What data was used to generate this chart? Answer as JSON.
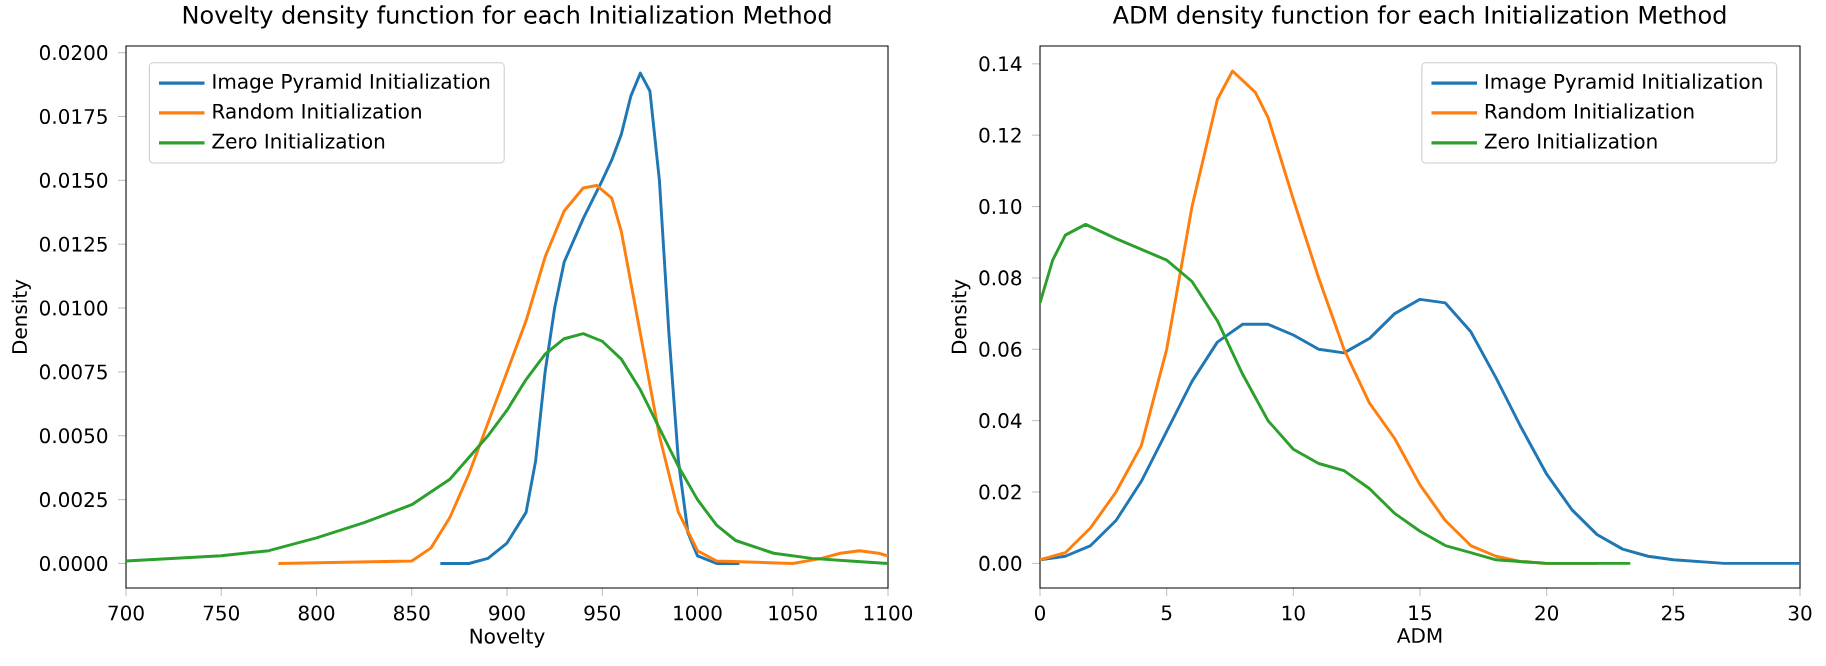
{
  "chart_data": [
    {
      "type": "line",
      "title": "Novelty density function for each Initialization Method",
      "xlabel": "Novelty",
      "ylabel": "Density",
      "xlim": [
        700,
        1100
      ],
      "xticks": [
        700,
        750,
        800,
        850,
        900,
        950,
        1000,
        1050,
        1100
      ],
      "ylim": [
        -0.00096,
        0.02026
      ],
      "yticks": [
        {
          "value": 0,
          "label": "0.0000"
        },
        {
          "value": 0.0025,
          "label": "0.0025"
        },
        {
          "value": 0.005,
          "label": "0.0050"
        },
        {
          "value": 0.0075,
          "label": "0.0075"
        },
        {
          "value": 0.01,
          "label": "0.0100"
        },
        {
          "value": 0.0125,
          "label": "0.0125"
        },
        {
          "value": 0.015,
          "label": "0.0150"
        },
        {
          "value": 0.0175,
          "label": "0.0175"
        },
        {
          "value": 0.02,
          "label": "0.0200"
        }
      ],
      "legend": "top left",
      "series": [
        {
          "name": "Image Pyramid Initialization",
          "color": "#1f77b4",
          "x": [
            865,
            880,
            890,
            900,
            910,
            915,
            920,
            925,
            930,
            940,
            950,
            955,
            960,
            965,
            970,
            975,
            980,
            985,
            990,
            995,
            1000,
            1010,
            1022
          ],
          "values": [
            0,
            0,
            0.0002,
            0.0008,
            0.002,
            0.004,
            0.0075,
            0.01,
            0.0118,
            0.0135,
            0.015,
            0.0158,
            0.0168,
            0.0183,
            0.0192,
            0.0185,
            0.015,
            0.009,
            0.004,
            0.0012,
            0.0003,
            0,
            0
          ]
        },
        {
          "name": "Random Initialization",
          "color": "#ff7f0e",
          "x": [
            780,
            850,
            860,
            870,
            880,
            890,
            900,
            910,
            920,
            930,
            940,
            947,
            955,
            960,
            970,
            980,
            990,
            1000,
            1010,
            1050,
            1065,
            1075,
            1085,
            1095,
            1100
          ],
          "values": [
            0,
            0.0001,
            0.0006,
            0.0018,
            0.0035,
            0.0055,
            0.0075,
            0.0095,
            0.012,
            0.0138,
            0.0147,
            0.0148,
            0.0143,
            0.013,
            0.009,
            0.005,
            0.002,
            0.0005,
            0.0001,
            0,
            0.0002,
            0.0004,
            0.0005,
            0.0004,
            0.0003
          ]
        },
        {
          "name": "Zero Initialization",
          "color": "#2ca02c",
          "x": [
            700,
            750,
            775,
            800,
            825,
            850,
            870,
            890,
            900,
            910,
            920,
            930,
            940,
            950,
            960,
            970,
            980,
            990,
            1000,
            1010,
            1020,
            1040,
            1060,
            1080,
            1100
          ],
          "values": [
            0.0001,
            0.0003,
            0.0005,
            0.001,
            0.0016,
            0.0023,
            0.0033,
            0.005,
            0.006,
            0.0072,
            0.0082,
            0.0088,
            0.009,
            0.0087,
            0.008,
            0.0068,
            0.0053,
            0.0038,
            0.0025,
            0.0015,
            0.0009,
            0.0004,
            0.0002,
            0.0001,
            0
          ]
        }
      ]
    },
    {
      "type": "line",
      "title": "ADM density function for each Initialization Method",
      "xlabel": "ADM",
      "ylabel": "Density",
      "xlim": [
        0,
        30
      ],
      "xticks": [
        0,
        5,
        10,
        15,
        20,
        25,
        30
      ],
      "ylim": [
        -0.0069,
        0.145
      ],
      "yticks": [
        {
          "value": 0,
          "label": "0.00"
        },
        {
          "value": 0.02,
          "label": "0.02"
        },
        {
          "value": 0.04,
          "label": "0.04"
        },
        {
          "value": 0.06,
          "label": "0.06"
        },
        {
          "value": 0.08,
          "label": "0.08"
        },
        {
          "value": 0.1,
          "label": "0.10"
        },
        {
          "value": 0.12,
          "label": "0.12"
        },
        {
          "value": 0.14,
          "label": "0.14"
        }
      ],
      "legend": "top right",
      "series": [
        {
          "name": "Image Pyramid Initialization",
          "color": "#1f77b4",
          "x": [
            0,
            1,
            2,
            3,
            4,
            5,
            6,
            7,
            8,
            9,
            10,
            11,
            12,
            13,
            14,
            15,
            16,
            17,
            18,
            19,
            20,
            21,
            22,
            23,
            24,
            25,
            27,
            30
          ],
          "values": [
            0.001,
            0.002,
            0.005,
            0.012,
            0.023,
            0.037,
            0.051,
            0.062,
            0.067,
            0.067,
            0.064,
            0.06,
            0.059,
            0.063,
            0.07,
            0.074,
            0.073,
            0.065,
            0.052,
            0.038,
            0.025,
            0.015,
            0.008,
            0.004,
            0.002,
            0.001,
            0,
            0
          ]
        },
        {
          "name": "Random Initialization",
          "color": "#ff7f0e",
          "x": [
            0,
            1,
            2,
            3,
            4,
            5,
            6,
            7,
            7.6,
            8.5,
            9,
            10,
            11,
            12,
            13,
            14,
            15,
            16,
            17,
            18,
            19,
            20,
            22
          ],
          "values": [
            0.001,
            0.003,
            0.01,
            0.02,
            0.033,
            0.06,
            0.1,
            0.13,
            0.138,
            0.132,
            0.125,
            0.102,
            0.08,
            0.06,
            0.045,
            0.035,
            0.022,
            0.012,
            0.005,
            0.002,
            0.0005,
            0,
            0
          ]
        },
        {
          "name": "Zero Initialization",
          "color": "#2ca02c",
          "x": [
            0,
            0.5,
            1,
            1.8,
            3,
            4,
            5,
            6,
            7,
            8,
            9,
            10,
            11,
            12,
            13,
            14,
            15,
            16,
            17,
            18,
            20,
            23.3
          ],
          "values": [
            0.073,
            0.085,
            0.092,
            0.095,
            0.091,
            0.088,
            0.085,
            0.079,
            0.068,
            0.053,
            0.04,
            0.032,
            0.028,
            0.026,
            0.021,
            0.014,
            0.009,
            0.005,
            0.003,
            0.001,
            0,
            0
          ]
        }
      ]
    }
  ]
}
